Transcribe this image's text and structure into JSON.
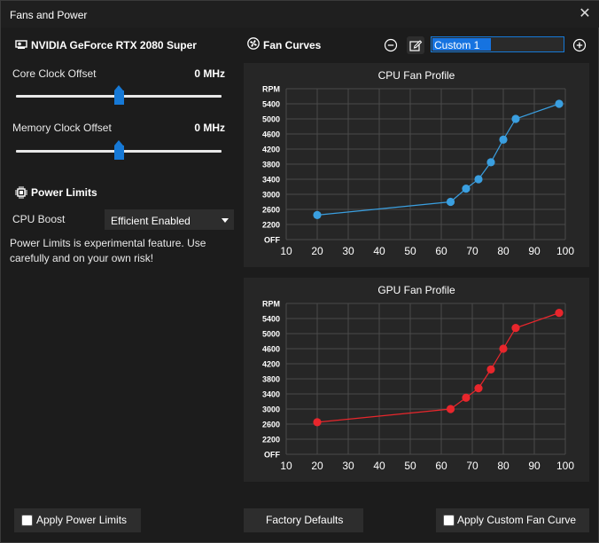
{
  "window": {
    "title": "Fans and Power"
  },
  "gpu": {
    "name": "NVIDIA GeForce RTX 2080 Super",
    "core_clock": {
      "label": "Core Clock Offset",
      "value": "0 MHz",
      "position": 0.5
    },
    "memory_clock": {
      "label": "Memory Clock Offset",
      "value": "0 MHz",
      "position": 0.5
    }
  },
  "power_limits": {
    "title": "Power Limits",
    "cpu_boost_label": "CPU Boost",
    "cpu_boost_value": "Efficient Enabled",
    "warning": "Power Limits is experimental feature. Use carefully and on your own risk!"
  },
  "fan_curves": {
    "title": "Fan Curves",
    "profile_name": "Custom 1"
  },
  "buttons": {
    "apply_power_limits": "Apply Power Limits",
    "factory_defaults": "Factory Defaults",
    "apply_custom_fan_curve": "Apply Custom Fan Curve"
  },
  "colors": {
    "cpu_series": "#3a9fe0",
    "gpu_series": "#e8262c",
    "accent": "#1679d6"
  },
  "chart_data": [
    {
      "type": "line",
      "title": "CPU Fan Profile",
      "ylabel": "RPM",
      "x_ticks": [
        10,
        20,
        30,
        40,
        50,
        60,
        70,
        80,
        90,
        100
      ],
      "y_ticks": [
        "OFF",
        "2200",
        "2600",
        "3000",
        "3400",
        "3800",
        "4200",
        "4600",
        "5000",
        "5400"
      ],
      "xlim": [
        10,
        100
      ],
      "ylim": [
        1800,
        5800
      ],
      "series": [
        {
          "name": "CPU",
          "x": [
            20,
            63,
            68,
            72,
            76,
            80,
            84,
            98
          ],
          "y": [
            2450,
            2800,
            3150,
            3400,
            3850,
            4450,
            5000,
            5400
          ]
        }
      ]
    },
    {
      "type": "line",
      "title": "GPU Fan Profile",
      "ylabel": "RPM",
      "x_ticks": [
        10,
        20,
        30,
        40,
        50,
        60,
        70,
        80,
        90,
        100
      ],
      "y_ticks": [
        "OFF",
        "2200",
        "2600",
        "3000",
        "3400",
        "3800",
        "4200",
        "4600",
        "5000",
        "5400"
      ],
      "xlim": [
        10,
        100
      ],
      "ylim": [
        1800,
        5800
      ],
      "series": [
        {
          "name": "GPU",
          "x": [
            20,
            63,
            68,
            72,
            76,
            80,
            84,
            98
          ],
          "y": [
            2650,
            3000,
            3300,
            3550,
            4050,
            4600,
            5150,
            5550
          ]
        }
      ]
    }
  ]
}
